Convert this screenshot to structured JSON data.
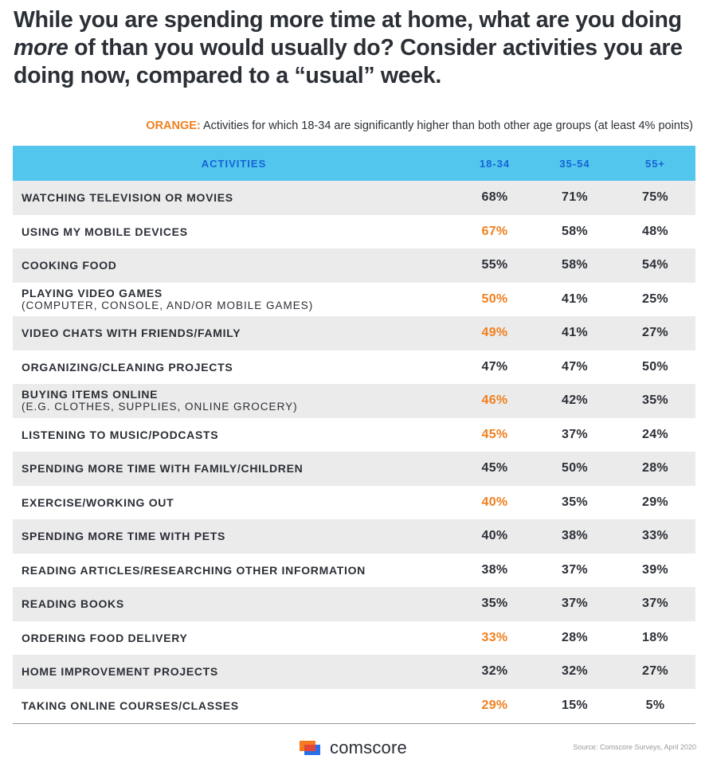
{
  "title": {
    "part1": "While you are spending more time at home, what are you doing ",
    "emph": "more",
    "part2": " of than you would usually do? Consider activities you are doing now, compared to a “usual” week."
  },
  "note": {
    "label": "ORANGE:",
    "text": " Activities for which 18-34 are significantly higher than both other age groups (at least 4% points)"
  },
  "colors": {
    "header_bg": "#52c6ec",
    "header_text": "#1563d6",
    "highlight": "#f07f1e",
    "shade": "#ebebeb"
  },
  "chart_data": {
    "type": "table",
    "columns": [
      "ACTIVITIES",
      "18-34",
      "35-54",
      "55+"
    ],
    "rows": [
      {
        "activity": "WATCHING TELEVISION OR MOVIES",
        "sub": "",
        "v1": "68%",
        "v2": "71%",
        "v3": "75%",
        "highlight": false
      },
      {
        "activity": "USING MY MOBILE DEVICES",
        "sub": "",
        "v1": "67%",
        "v2": "58%",
        "v3": "48%",
        "highlight": true
      },
      {
        "activity": "COOKING FOOD",
        "sub": "",
        "v1": "55%",
        "v2": "58%",
        "v3": "54%",
        "highlight": false
      },
      {
        "activity": "PLAYING VIDEO GAMES",
        "sub": "(COMPUTER, CONSOLE, AND/OR MOBILE GAMES)",
        "v1": "50%",
        "v2": "41%",
        "v3": "25%",
        "highlight": true
      },
      {
        "activity": "VIDEO CHATS WITH FRIENDS/FAMILY",
        "sub": "",
        "v1": "49%",
        "v2": "41%",
        "v3": "27%",
        "highlight": true
      },
      {
        "activity": "ORGANIZING/CLEANING PROJECTS",
        "sub": "",
        "v1": "47%",
        "v2": "47%",
        "v3": "50%",
        "highlight": false
      },
      {
        "activity": "BUYING ITEMS ONLINE",
        "sub": "(E.G. CLOTHES, SUPPLIES, ONLINE GROCERY)",
        "v1": "46%",
        "v2": "42%",
        "v3": "35%",
        "highlight": true
      },
      {
        "activity": "LISTENING TO MUSIC/PODCASTS",
        "sub": "",
        "v1": "45%",
        "v2": "37%",
        "v3": "24%",
        "highlight": true
      },
      {
        "activity": "SPENDING MORE TIME WITH FAMILY/CHILDREN",
        "sub": "",
        "v1": "45%",
        "v2": "50%",
        "v3": "28%",
        "highlight": false
      },
      {
        "activity": "EXERCISE/WORKING OUT",
        "sub": "",
        "v1": "40%",
        "v2": "35%",
        "v3": "29%",
        "highlight": true
      },
      {
        "activity": "SPENDING MORE TIME WITH PETS",
        "sub": "",
        "v1": "40%",
        "v2": "38%",
        "v3": "33%",
        "highlight": false
      },
      {
        "activity": "READING ARTICLES/RESEARCHING OTHER INFORMATION",
        "sub": "",
        "v1": "38%",
        "v2": "37%",
        "v3": "39%",
        "highlight": false
      },
      {
        "activity": "READING BOOKS",
        "sub": "",
        "v1": "35%",
        "v2": "37%",
        "v3": "37%",
        "highlight": false
      },
      {
        "activity": "ORDERING FOOD DELIVERY",
        "sub": "",
        "v1": "33%",
        "v2": "28%",
        "v3": "18%",
        "highlight": true
      },
      {
        "activity": "HOME IMPROVEMENT PROJECTS",
        "sub": "",
        "v1": "32%",
        "v2": "32%",
        "v3": "27%",
        "highlight": false
      },
      {
        "activity": "TAKING ONLINE COURSES/CLASSES",
        "sub": "",
        "v1": "29%",
        "v2": "15%",
        "v3": "5%",
        "highlight": true
      }
    ]
  },
  "footer": {
    "logo_text": "comscore",
    "logo_icon": "comscore-logo-icon",
    "source": "Source: Comscore Surveys, April 2020"
  }
}
